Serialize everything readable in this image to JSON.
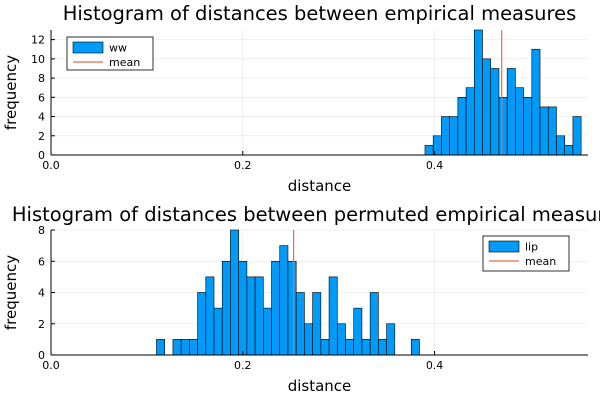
{
  "chart_data": [
    {
      "type": "bar",
      "title": "Histogram of distances between empirical measures",
      "xlabel": "distance",
      "ylabel": "frequency",
      "xlim": [
        0.0,
        0.56
      ],
      "ylim": [
        0,
        13
      ],
      "xticks": [
        "0.0",
        "0.2",
        "0.4"
      ],
      "yticks": [
        "0",
        "2",
        "4",
        "6",
        "8",
        "10",
        "12"
      ],
      "grid": true,
      "legend_position": "top-left",
      "bin_start": 0.39,
      "bin_width": 0.00857,
      "series": [
        {
          "name": "ww",
          "values": [
            1,
            2,
            4,
            4,
            6,
            7,
            13,
            10,
            9,
            6,
            9,
            7,
            6,
            11,
            5,
            5,
            2,
            1,
            4
          ]
        }
      ],
      "mean": {
        "name": "mean",
        "x": 0.47
      },
      "colors": {
        "bars": "#009af9",
        "mean": "#e26f46"
      }
    },
    {
      "type": "bar",
      "title": "Histogram of distances between permuted empirical measures",
      "xlabel": "distance",
      "ylabel": "frequency",
      "xlim": [
        0.0,
        0.56
      ],
      "ylim": [
        0,
        8
      ],
      "xticks": [
        "0.0",
        "0.2",
        "0.4"
      ],
      "yticks": [
        "0",
        "2",
        "4",
        "6",
        "8"
      ],
      "grid": true,
      "legend_position": "top-right",
      "bin_start": 0.11,
      "bin_width": 0.00857,
      "series": [
        {
          "name": "lip",
          "values": [
            1,
            0,
            1,
            1,
            1,
            4,
            5,
            3,
            6,
            8,
            6,
            5,
            5,
            3,
            6,
            7,
            6,
            4,
            2,
            4,
            1,
            5,
            2,
            1,
            3,
            1,
            4,
            1,
            2,
            0,
            0,
            1
          ]
        }
      ],
      "mean": {
        "name": "mean",
        "x": 0.253
      },
      "colors": {
        "bars": "#009af9",
        "mean": "#e26f46"
      }
    }
  ]
}
